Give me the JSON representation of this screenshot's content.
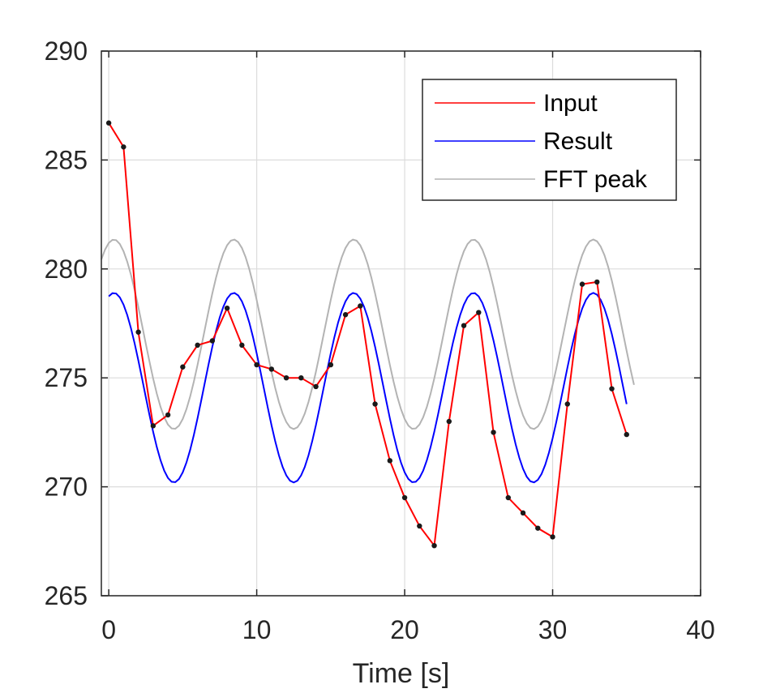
{
  "chart_data": {
    "type": "line",
    "title": "",
    "xlabel": "Time [s]",
    "ylabel": "",
    "xlim": [
      -0.5,
      40
    ],
    "ylim": [
      265,
      290
    ],
    "xticks": [
      0,
      10,
      20,
      30,
      40
    ],
    "yticks": [
      265,
      270,
      275,
      280,
      285,
      290
    ],
    "grid": true,
    "legend_position": "top-right",
    "colors": {
      "input": "#ff0000",
      "result": "#0000ff",
      "fft": "#b3b3b3",
      "marker": "#1a1a1a"
    },
    "series": [
      {
        "name": "Input",
        "x": [
          0,
          1,
          2,
          3,
          4,
          5,
          6,
          7,
          8,
          9,
          10,
          11,
          12,
          13,
          14,
          15,
          16,
          17,
          18,
          19,
          20,
          21,
          22,
          23,
          24,
          25,
          26,
          27,
          28,
          29,
          30,
          31,
          32,
          33,
          34,
          35
        ],
        "values": [
          286.7,
          285.6,
          277.1,
          272.8,
          273.3,
          275.5,
          276.5,
          276.7,
          278.2,
          276.5,
          275.6,
          275.4,
          275.0,
          275.0,
          274.6,
          275.6,
          277.9,
          278.3,
          273.8,
          271.2,
          269.5,
          268.2,
          267.3,
          273.0,
          277.4,
          278.0,
          272.5,
          269.5,
          268.8,
          268.1,
          267.7,
          273.8,
          279.3,
          279.4,
          274.5,
          272.4
        ],
        "markers": true
      },
      {
        "name": "Result",
        "x_start": 0,
        "x_end": 35,
        "step": 0.25,
        "mean": 274.55,
        "amplitude": 4.35,
        "period": 8.1,
        "peak_at": 0.35
      },
      {
        "name": "FFT peak",
        "x_start": -0.5,
        "x_end": 35.7,
        "step": 0.25,
        "mean": 277.0,
        "amplitude": 4.35,
        "period": 8.1,
        "peak_at": 0.35
      }
    ]
  }
}
